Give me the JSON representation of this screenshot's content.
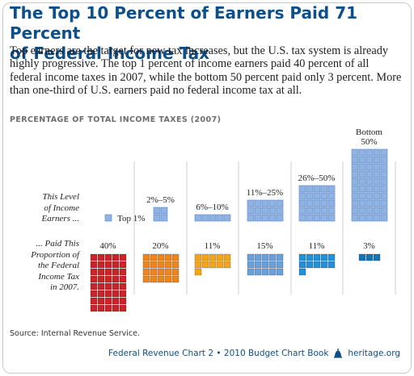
{
  "title_line1": "The Top 10 Percent of Earners Paid 71 Percent",
  "title_line2": "of Federal Income Tax",
  "intro": "Top earners are the target for new tax increases, but the U.S. tax system is already highly progressive. The top 1 percent of income earners paid 40 percent of all federal income taxes in 2007, while the bottom 50 percent paid only 3 percent. More than one-third of U.S. earners paid no federal income tax at all.",
  "subhead": "PERCENTAGE OF TOTAL INCOME TAXES (2007)",
  "row1_label": [
    "This Level",
    "of Income",
    "Earners ..."
  ],
  "row2_label": [
    "... Paid This",
    "Proportion of",
    "the Federal",
    "Income Tax",
    "in 2007."
  ],
  "source": "Source: Internal Revenue Service.",
  "footer_text": "Federal Revenue Chart 2 • 2010 Budget Chart Book",
  "footer_site": "heritage.org",
  "chart_data": {
    "type": "bar",
    "title": "PERCENTAGE OF TOTAL INCOME TAXES (2007)",
    "categories": [
      "Top 1%",
      "2%–5%",
      "6%–10%",
      "11%–25%",
      "26%–50%",
      "Bottom 50%"
    ],
    "series": [
      {
        "name": "This Level of Income Earners ...",
        "values": [
          1,
          4,
          5,
          15,
          25,
          50
        ]
      },
      {
        "name": "... Paid This Proportion of the Federal Income Tax in 2007.",
        "values": [
          40,
          20,
          11,
          15,
          11,
          3
        ]
      }
    ],
    "value_labels": [
      "40%",
      "20%",
      "11%",
      "15%",
      "11%",
      "3%"
    ],
    "colors": {
      "earners": "#8fb3e3",
      "taxes": [
        "#cc2229",
        "#f0851c",
        "#f5a51c",
        "#6aa0de",
        "#1f92db",
        "#1573b8"
      ],
      "column_border": "#cfcfcf"
    }
  }
}
